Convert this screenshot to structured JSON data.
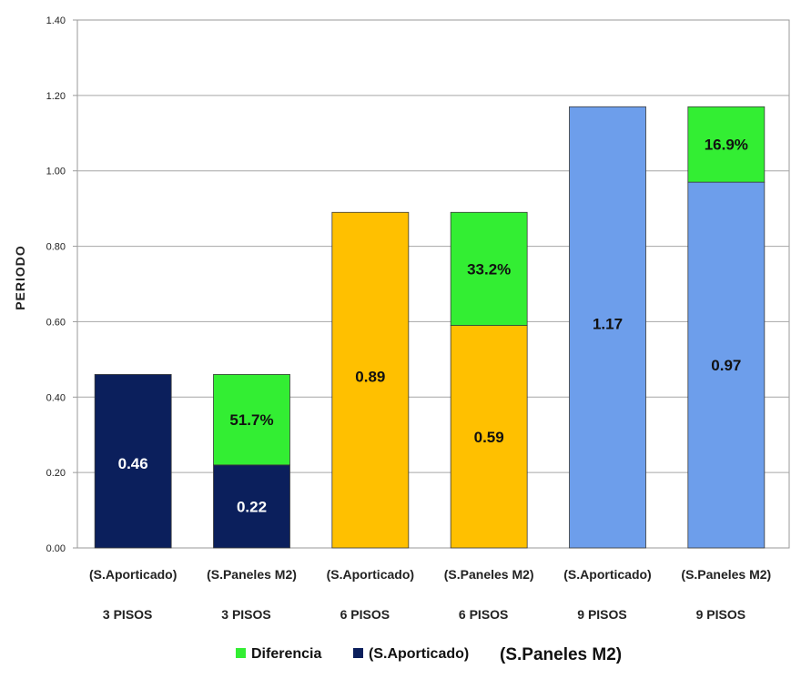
{
  "chart_data": {
    "type": "bar",
    "ylabel": "PERIODO",
    "ylim": [
      0,
      1.4
    ],
    "yticks": [
      "0.00",
      "0.20",
      "0.40",
      "0.60",
      "0.80",
      "1.00",
      "1.20",
      "1.40"
    ],
    "grid": true,
    "categories": [
      {
        "line1": "(S.Aporticado)",
        "line2": "3 PISOS"
      },
      {
        "line1": "(S.Paneles M2)",
        "line2": "3 PISOS"
      },
      {
        "line1": "(S.Aporticado)",
        "line2": "6 PISOS"
      },
      {
        "line1": "(S.Paneles M2)",
        "line2": "6 PISOS"
      },
      {
        "line1": "(S.Aporticado)",
        "line2": "9 PISOS"
      },
      {
        "line1": "(S.Paneles M2)",
        "line2": "9 PISOS"
      }
    ],
    "bars": [
      {
        "base": 0.46,
        "base_label": "0.46",
        "diff": 0,
        "diff_label": "",
        "color": "#0b1f5c",
        "label_color": "#ffffff"
      },
      {
        "base": 0.22,
        "base_label": "0.22",
        "diff": 0.24,
        "diff_label": "51.7%",
        "color": "#0b1f5c",
        "label_color": "#ffffff"
      },
      {
        "base": 0.89,
        "base_label": "0.89",
        "diff": 0,
        "diff_label": "",
        "color": "#ffc000",
        "label_color": "#111111"
      },
      {
        "base": 0.59,
        "base_label": "0.59",
        "diff": 0.3,
        "diff_label": "33.2%",
        "color": "#ffc000",
        "label_color": "#111111"
      },
      {
        "base": 1.17,
        "base_label": "1.17",
        "diff": 0,
        "diff_label": "",
        "color": "#6d9eeb",
        "label_color": "#111111"
      },
      {
        "base": 0.97,
        "base_label": "0.97",
        "diff": 0.2,
        "diff_label": "16.9%",
        "color": "#6d9eeb",
        "label_color": "#111111"
      }
    ],
    "diff_color": "#33ee33",
    "legend": {
      "placement": "bottom",
      "items": [
        {
          "label": "Diferencia",
          "color": "#33ee33"
        },
        {
          "label": "(S.Aporticado)",
          "color": "#0b1f5c"
        }
      ],
      "extra_text": "(S.Paneles M2)"
    }
  }
}
